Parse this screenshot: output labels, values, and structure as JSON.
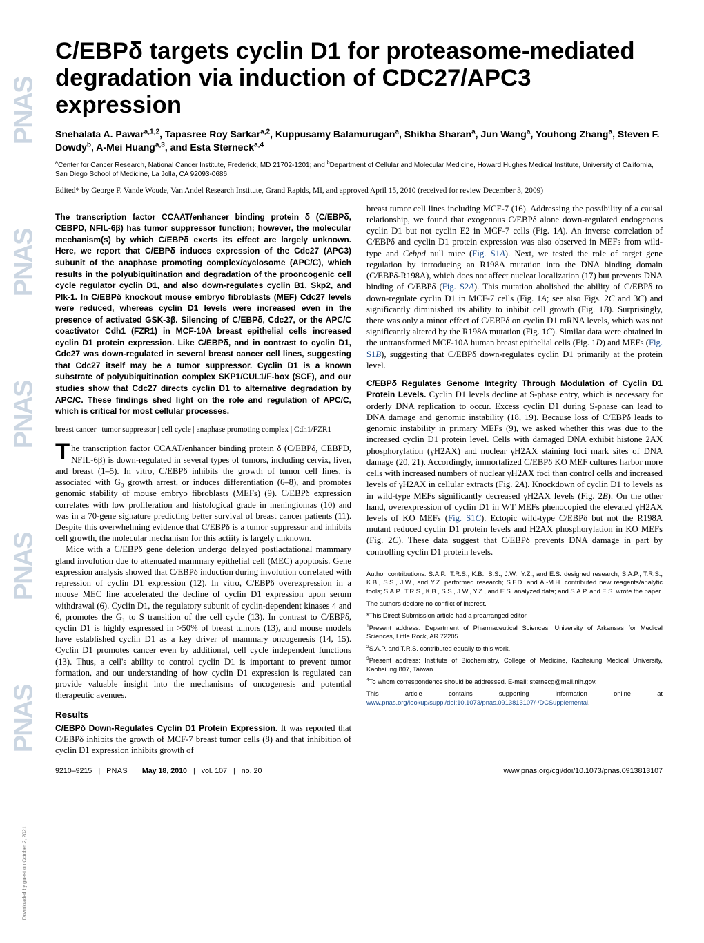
{
  "journal_strip": "PNAS",
  "title": "C/EBPδ targets cyclin D1 for proteasome-mediated degradation via induction of CDC27/APC3 expression",
  "authors_html": "Snehalata A. Pawar<sup>a,1,2</sup>, Tapasree Roy Sarkar<sup>a,2</sup>, Kuppusamy Balamurugan<sup>a</sup>, Shikha Sharan<sup>a</sup>, Jun Wang<sup>a</sup>, Youhong Zhang<sup>a</sup>, Steven F. Dowdy<sup>b</sup>, A-Mei Huang<sup>a,3</sup>, and Esta Sterneck<sup>a,4</sup>",
  "affiliations_html": "<sup>a</sup>Center for Cancer Research, National Cancer Institute, Frederick, MD 21702-1201; and <sup>b</sup>Department of Cellular and Molecular Medicine, Howard Hughes Medical Institute, University of California, San Diego School of Medicine, La Jolla, CA 92093-0686",
  "edited": "Edited* by George F. Vande Woude, Van Andel Research Institute, Grand Rapids, MI, and approved April 15, 2010 (received for review December 3, 2009)",
  "abstract": "The transcription factor CCAAT/enhancer binding protein δ (C/EBPδ, CEBPD, NFIL-6β) has tumor suppressor function; however, the molecular mechanism(s) by which C/EBPδ exerts its effect are largely unknown. Here, we report that C/EBPδ induces expression of the Cdc27 (APC3) subunit of the anaphase promoting complex/cyclosome (APC/C), which results in the polyubiquitination and degradation of the prooncogenic cell cycle regulator cyclin D1, and also down-regulates cyclin B1, Skp2, and Plk-1. In C/EBPδ knockout mouse embryo fibroblasts (MEF) Cdc27 levels were reduced, whereas cyclin D1 levels were increased even in the presence of activated GSK-3β. Silencing of C/EBPδ, Cdc27, or the APC/C coactivator Cdh1 (FZR1) in MCF-10A breast epithelial cells increased cyclin D1 protein expression. Like C/EBPδ, and in contrast to cyclin D1, Cdc27 was down-regulated in several breast cancer cell lines, suggesting that Cdc27 itself may be a tumor suppressor. Cyclin D1 is a known substrate of polyubiquitination complex SKP1/CUL1/F-box (SCF), and our studies show that Cdc27 directs cyclin D1 to alternative degradation by APC/C. These findings shed light on the role and regulation of APC/C, which is critical for most cellular processes.",
  "keywords": "breast cancer | tumor suppressor | cell cycle | anaphase promoting complex | Cdh1/FZR1",
  "intro_p1_html": "he transcription factor CCAAT/enhancer binding protein δ (C/EBPδ, CEBPD, NFIL-6β) is down-regulated in several types of tumors, including cervix, liver, and breast (1–5). In vitro, C/EBPδ inhibits the growth of tumor cell lines, is associated with G<sub>0</sub> growth arrest, or induces differentiation (6–8), and promotes genomic stability of mouse embryo fibroblasts (MEFs) (9). C/EBPδ expression correlates with low proliferation and histological grade in meningiomas (10) and was in a 70-gene signature predicting better survival of breast cancer patients (11). Despite this overwhelming evidence that C/EBPδ is a tumor suppressor and inhibits cell growth, the molecular mechanism for this actiity is largely unknown.",
  "intro_p2_html": "Mice with a C/EBPδ gene deletion undergo delayed postlactational mammary gland involution due to attenuated mammary epithelial cell (MEC) apoptosis. Gene expression analysis showed that C/EBPδ induction during involution correlated with repression of cyclin D1 expression (12). In vitro, C/EBPδ overexpression in a mouse MEC line accelerated the decline of cyclin D1 expression upon serum withdrawal (6). Cyclin D1, the regulatory subunit of cyclin-dependent kinases 4 and 6, promotes the G<sub>1</sub> to S transition of the cell cycle (13). In contrast to C/EBPδ, cyclin D1 is highly expressed in &gt;50% of breast tumors (13), and mouse models have established cyclin D1 as a key driver of mammary oncogenesis (14, 15). Cyclin D1 promotes cancer even by additional, cell cycle independent functions (13). Thus, a cell's ability to control cyclin D1 is important to prevent tumor formation, and our understanding of how cyclin D1 expression is regulated can provide valuable insight into the mechanisms of oncogenesis and potential therapeutic avenues.",
  "results_h": "Results",
  "results_runin": "C/EBPδ Down-Regulates Cyclin D1 Protein Expression.",
  "results_p1": " It was reported that C/EBPδ inhibits the growth of MCF-7 breast tumor cells (8) and that inhibition of cyclin D1 expression inhibits growth of",
  "right_p1_html": "breast tumor cell lines including MCF-7 (16). Addressing the possibility of a causal relationship, we found that exogenous C/EBPδ alone down-regulated endogenous cyclin D1 but not cyclin E2 in MCF-7 cells (Fig. 1<i>A</i>). An inverse correlation of C/EBPδ and cyclin D1 protein expression was also observed in MEFs from wild-type and <i>Cebpd</i> null mice (<span class=\"link\">Fig. S1<i>A</i></span>). Next, we tested the role of target gene regulation by introducing an R198A mutation into the DNA binding domain (C/EBPδ-R198A), which does not affect nuclear localization (17) but prevents DNA binding of C/EBPδ (<span class=\"link\">Fig. S2<i>A</i></span>). This mutation abolished the ability of C/EBPδ to down-regulate cyclin D1 in MCF-7 cells (Fig. 1<i>A</i>; see also Figs. 2<i>C</i> and 3<i>C</i>) and significantly diminished its ability to inhibit cell growth (Fig. 1<i>B</i>). Surprisingly, there was only a minor effect of C/EBPδ on cyclin D1 mRNA levels, which was not significantly altered by the R198A mutation (Fig. 1<i>C</i>). Similar data were obtained in the untransformed MCF-10A human breast epithelial cells (Fig. 1<i>D</i>) and MEFs (<span class=\"link\">Fig. S1<i>B</i></span>), suggesting that C/EBPδ down-regulates cyclin D1 primarily at the protein level.",
  "right_runin2": "C/EBPδ Regulates Genome Integrity Through Modulation of Cyclin D1 Protein Levels.",
  "right_p2_html": " Cyclin D1 levels decline at S-phase entry, which is necessary for orderly DNA replication to occur. Excess cyclin D1 during S-phase can lead to DNA damage and genomic instability (18, 19). Because loss of C/EBPδ leads to genomic instability in primary MEFs (9), we asked whether this was due to the increased cyclin D1 protein level. Cells with damaged DNA exhibit histone 2AX phosphorylation (γH2AX) and nuclear γH2AX staining foci mark sites of DNA damage (20, 21). Accordingly, immortalized C/EBPδ KO MEF cultures harbor more cells with increased numbers of nuclear γH2AX foci than control cells and increased levels of γH2AX in cellular extracts (Fig. 2<i>A</i>). Knockdown of cyclin D1 to levels as in wild-type MEFs significantly decreased γH2AX levels (Fig. 2<i>B</i>). On the other hand, overexpression of cyclin D1 in WT MEFs phenocopied the elevated γH2AX levels of KO MEFs (<span class=\"link\">Fig. S1<i>C</i></span>). Ectopic wild-type C/EBPδ but not the R198A mutant reduced cyclin D1 protein levels and H2AX phosphorylation in KO MEFs (Fig. 2<i>C</i>). These data suggest that C/EBPδ prevents DNA damage in part by controlling cyclin D1 protein levels.",
  "footnotes": {
    "contrib": "Author contributions: S.A.P., T.R.S., K.B., S.S., J.W., Y.Z., and E.S. designed research; S.A.P., T.R.S., K.B., S.S., J.W., and Y.Z. performed research; S.F.D. and A.-M.H. contributed new reagents/analytic tools; S.A.P., T.R.S., K.B., S.S., J.W., Y.Z., and E.S. analyzed data; and S.A.P. and E.S. wrote the paper.",
    "conflict": "The authors declare no conflict of interest.",
    "direct": "*This Direct Submission article had a prearranged editor.",
    "addr1_html": "<sup>1</sup>Present address: Department of Pharmaceutical Sciences, University of Arkansas for Medical Sciences, Little Rock, AR 72205.",
    "equal_html": "<sup>2</sup>S.A.P. and T.R.S. contributed equally to this work.",
    "addr3_html": "<sup>3</sup>Present address: Institute of Biochemistry, College of Medicine, Kaohsiung Medical University, Kaohsiung 807, Taiwan.",
    "corr_html": "<sup>4</sup>To whom correspondence should be addressed. E-mail: sternecg@mail.nih.gov.",
    "supp_html": "This article contains supporting information online at <span class=\"link\">www.pnas.org/lookup/suppl/doi:10.1073/pnas.0913813107/-/DCSupplemental</span>."
  },
  "footer": {
    "pages": "9210–9215",
    "pnas": "PNAS",
    "date": "May 18, 2010",
    "vol": "vol. 107",
    "no": "no. 20",
    "doi": "www.pnas.org/cgi/doi/10.1073/pnas.0913813107"
  },
  "side_download": "Downloaded by guest on October 2, 2021"
}
